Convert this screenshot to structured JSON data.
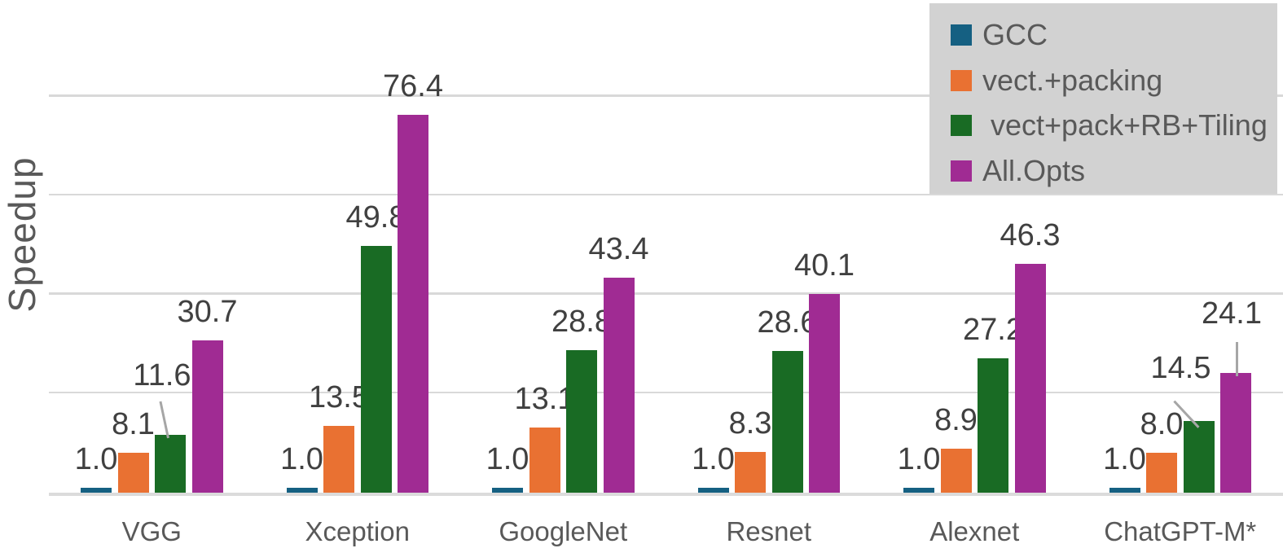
{
  "chart_data": {
    "type": "bar",
    "title": "",
    "ylabel": "Speedup",
    "xlabel": "",
    "categories": [
      "VGG",
      "Xception",
      "GoogleNet",
      "Resnet",
      "Alexnet",
      "ChatGPT-M*"
    ],
    "series": [
      {
        "name": "GCC",
        "color": "#156082",
        "values": [
          1.0,
          1.0,
          1.0,
          1.0,
          1.0,
          1.0
        ]
      },
      {
        "name": "vect.+packing",
        "color": "#E97132",
        "values": [
          8.1,
          13.5,
          13.1,
          8.3,
          8.9,
          8.0
        ]
      },
      {
        "name": " vect+pack+RB+Tiling",
        "color": "#196B24",
        "values": [
          11.6,
          49.8,
          28.8,
          28.6,
          27.2,
          14.5
        ]
      },
      {
        "name": "All.Opts",
        "color": "#A02B93",
        "values": [
          30.7,
          76.4,
          43.4,
          40.1,
          46.3,
          24.1
        ]
      }
    ],
    "value_labels_shown": true,
    "value_label_format": "one-decimal",
    "ylim": [
      0,
      99
    ],
    "gridline_values": [
      20,
      40,
      60,
      80
    ],
    "y_tick_labels_shown": false,
    "grid": true,
    "legend_position": "top-right",
    "callout_leader_lines": [
      {
        "category": "VGG",
        "series": " vect+pack+RB+Tiling",
        "value": 11.6
      },
      {
        "category": "ChatGPT-M*",
        "series": " vect+pack+RB+Tiling",
        "value": 14.5
      },
      {
        "category": "ChatGPT-M*",
        "series": "All.Opts",
        "value": 24.1
      }
    ],
    "colors": {
      "background": "#FFFFFF",
      "gridline": "#D9D9D9",
      "axis_line": "#DBDBDB",
      "value_label_text": "#404040",
      "axis_text": "#595959",
      "legend_bg": "#D2D2D2",
      "legend_text": "#595959",
      "leader_line": "#A6A6A6"
    }
  }
}
